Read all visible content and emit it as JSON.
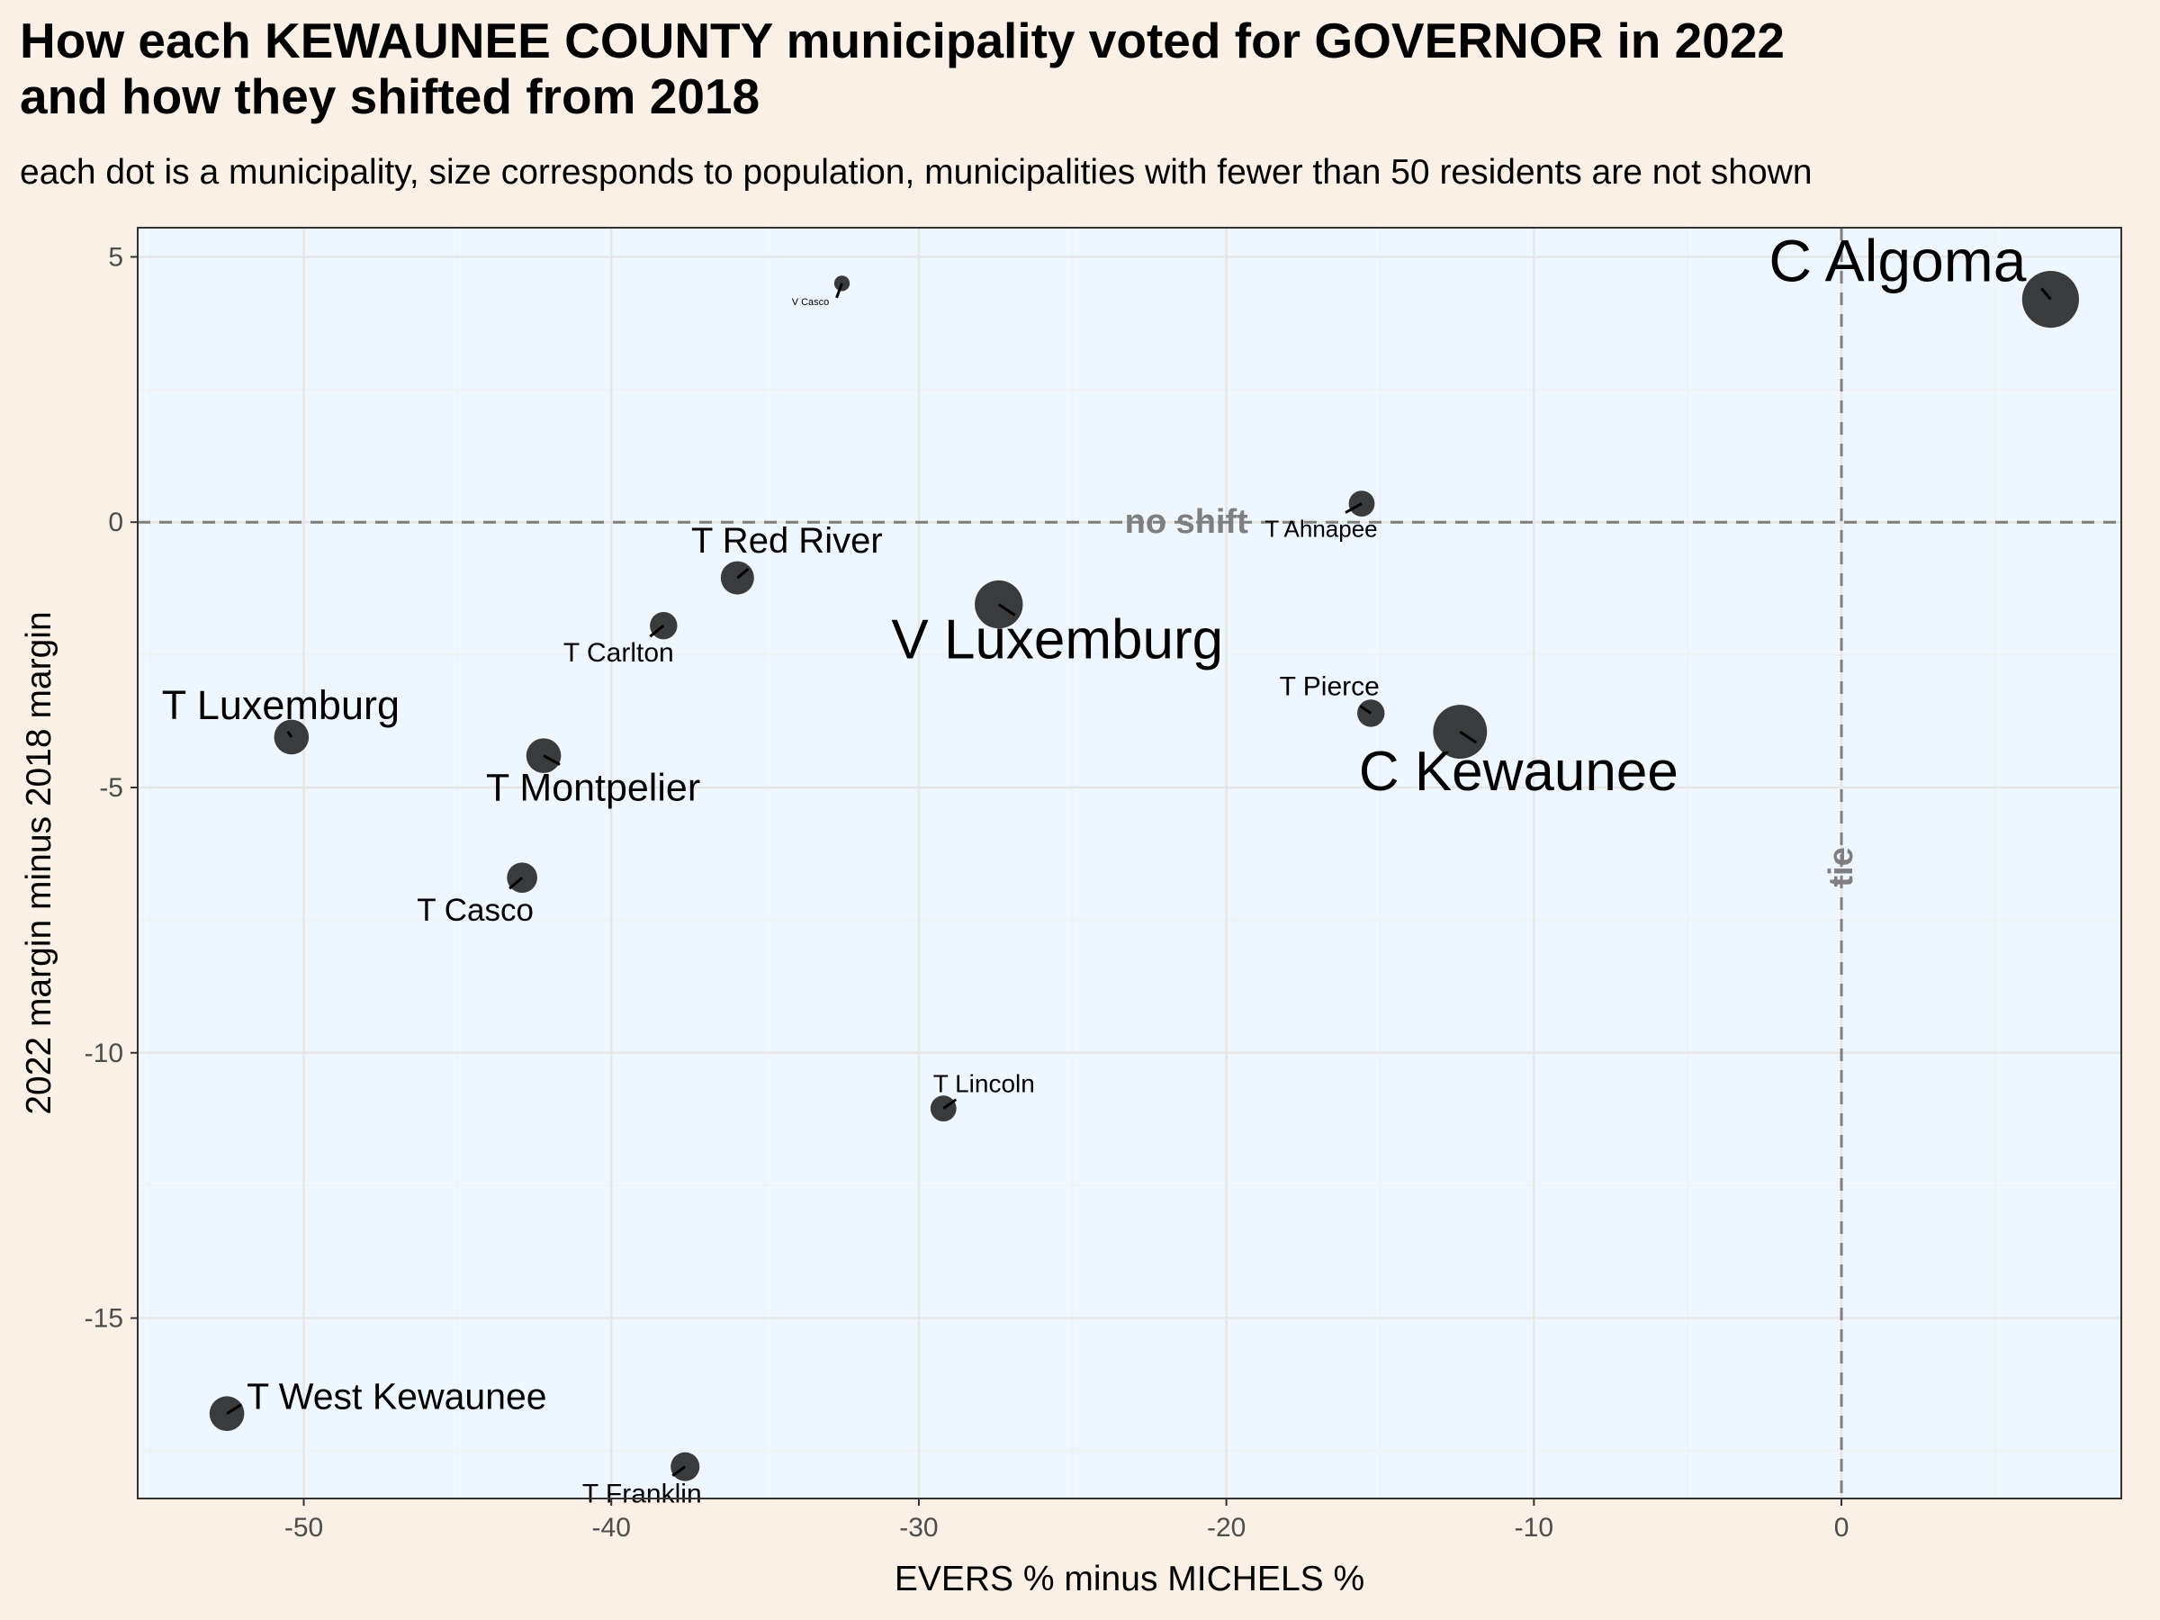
{
  "title_line1": "How each KEWAUNEE COUNTY municipality voted for GOVERNOR in 2022",
  "title_line2": "and how they shifted from 2018",
  "subtitle": "each dot is a municipality, size corresponds to population, municipalities with fewer than 50 residents are not shown",
  "chart_data": {
    "type": "scatter",
    "xlabel": "EVERS % minus MICHELS %",
    "ylabel": "2022 margin minus 2018 margin",
    "xlim": [
      -55.4,
      9.1
    ],
    "ylim": [
      -18.4,
      5.55
    ],
    "x_ticks": [
      -50,
      -40,
      -30,
      -20,
      -10,
      0
    ],
    "y_ticks": [
      5,
      0,
      -5,
      -10,
      -15
    ],
    "x_tick_labels": [
      "-50",
      "-40",
      "-30",
      "-20",
      "-10",
      "0"
    ],
    "y_tick_labels": [
      "5",
      "0",
      "-5",
      "-10",
      "-15"
    ],
    "grid": true,
    "reference_lines": {
      "horizontal": {
        "y": 0,
        "label": "no shift"
      },
      "vertical": {
        "x": 0,
        "label": "tie"
      }
    },
    "colors": {
      "panel": "#eef7ff",
      "point": "#1a1a1a",
      "reference": "#7f7f7f",
      "grid": "#e6e6e6"
    },
    "points": [
      {
        "name": "C Algoma",
        "x": 6.8,
        "y": 4.2,
        "size": 3
      },
      {
        "name": "V Casco",
        "x": -32.5,
        "y": 4.5,
        "size": 0.2
      },
      {
        "name": "T Ahnapee",
        "x": -15.6,
        "y": 0.35,
        "size": 0.9
      },
      {
        "name": "T Red River",
        "x": -35.9,
        "y": -1.05,
        "size": 1.4
      },
      {
        "name": "T Carlton",
        "x": -38.3,
        "y": -1.95,
        "size": 1.0
      },
      {
        "name": "V Luxemburg",
        "x": -27.4,
        "y": -1.55,
        "size": 2.4
      },
      {
        "name": "T Pierce",
        "x": -15.3,
        "y": -3.6,
        "size": 1.0
      },
      {
        "name": "C Kewaunee",
        "x": -12.4,
        "y": -3.95,
        "size": 2.8
      },
      {
        "name": "T Luxemburg",
        "x": -50.4,
        "y": -4.05,
        "size": 1.5
      },
      {
        "name": "T Montpelier",
        "x": -42.2,
        "y": -4.4,
        "size": 1.5
      },
      {
        "name": "T Casco",
        "x": -42.9,
        "y": -6.7,
        "size": 1.2
      },
      {
        "name": "T Lincoln",
        "x": -29.2,
        "y": -11.05,
        "size": 0.9
      },
      {
        "name": "T West Kewaunee",
        "x": -52.5,
        "y": -16.8,
        "size": 1.5
      },
      {
        "name": "T Franklin",
        "x": -37.6,
        "y": -17.8,
        "size": 1.1
      }
    ]
  }
}
